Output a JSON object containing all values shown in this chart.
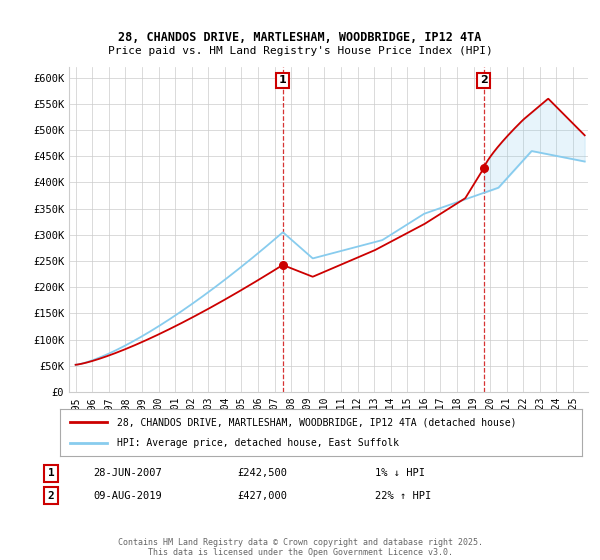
{
  "title_line1": "28, CHANDOS DRIVE, MARTLESHAM, WOODBRIDGE, IP12 4TA",
  "title_line2": "Price paid vs. HM Land Registry's House Price Index (HPI)",
  "ylim": [
    0,
    620000
  ],
  "yticks": [
    0,
    50000,
    100000,
    150000,
    200000,
    250000,
    300000,
    350000,
    400000,
    450000,
    500000,
    550000,
    600000
  ],
  "ytick_labels": [
    "£0",
    "£50K",
    "£100K",
    "£150K",
    "£200K",
    "£250K",
    "£300K",
    "£350K",
    "£400K",
    "£450K",
    "£500K",
    "£550K",
    "£600K"
  ],
  "sale1_year": 2007.49,
  "sale1_price": 242500,
  "sale1_date": "28-JUN-2007",
  "sale1_hpi": "1% ↓ HPI",
  "sale2_year": 2019.61,
  "sale2_price": 427000,
  "sale2_date": "09-AUG-2019",
  "sale2_hpi": "22% ↑ HPI",
  "legend_label1": "28, CHANDOS DRIVE, MARTLESHAM, WOODBRIDGE, IP12 4TA (detached house)",
  "legend_label2": "HPI: Average price, detached house, East Suffolk",
  "footer": "Contains HM Land Registry data © Crown copyright and database right 2025.\nThis data is licensed under the Open Government Licence v3.0.",
  "line_color_red": "#cc0000",
  "line_color_blue": "#88ccee",
  "vline_color": "#cc0000",
  "bg_color": "#ffffff",
  "grid_color": "#cccccc",
  "annotation_box_color": "#cc0000",
  "xlim_left": 1994.6,
  "xlim_right": 2025.9,
  "xtick_years": [
    1995,
    1996,
    1997,
    1998,
    1999,
    2000,
    2001,
    2002,
    2003,
    2004,
    2005,
    2006,
    2007,
    2008,
    2009,
    2010,
    2011,
    2012,
    2013,
    2014,
    2015,
    2016,
    2017,
    2018,
    2019,
    2020,
    2021,
    2022,
    2023,
    2024,
    2025
  ]
}
